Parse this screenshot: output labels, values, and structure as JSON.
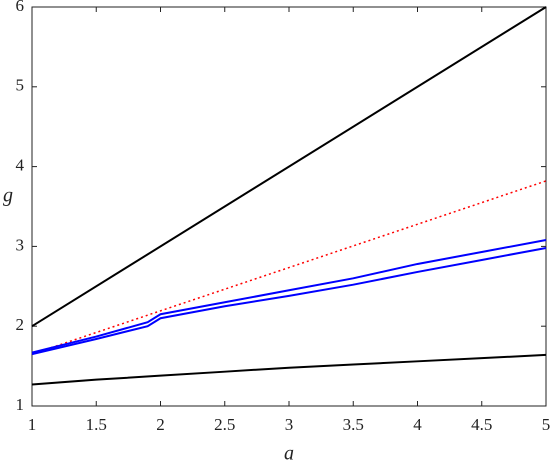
{
  "chart_data": {
    "type": "line",
    "xlabel": "a",
    "ylabel": "g",
    "xlim": [
      1,
      5
    ],
    "ylim": [
      1,
      6
    ],
    "xticks": [
      1,
      1.5,
      2,
      2.5,
      3,
      3.5,
      4,
      4.5,
      5
    ],
    "yticks": [
      1,
      2,
      3,
      4,
      5,
      6
    ],
    "series": [
      {
        "color": "#000000",
        "style": "solid",
        "x": [
          1,
          5
        ],
        "values": [
          2,
          6
        ]
      },
      {
        "color": "#000000",
        "style": "solid",
        "x": [
          1,
          1.5,
          2,
          2.5,
          3,
          3.5,
          4,
          4.5,
          5
        ],
        "values": [
          1.27,
          1.33,
          1.38,
          1.43,
          1.48,
          1.52,
          1.56,
          1.6,
          1.64
        ]
      },
      {
        "color": "#ff0000",
        "style": "dotted",
        "x": [
          1,
          5
        ],
        "values": [
          1.65,
          3.82
        ]
      },
      {
        "color": "#0000ff",
        "style": "solid",
        "x": [
          1,
          1.5,
          1.9,
          2,
          2.5,
          3,
          3.5,
          4,
          4.5,
          5
        ],
        "values": [
          1.67,
          1.87,
          2.05,
          2.15,
          2.3,
          2.45,
          2.6,
          2.78,
          2.93,
          3.08
        ]
      },
      {
        "color": "#0000ff",
        "style": "solid",
        "x": [
          1,
          1.5,
          1.9,
          2,
          2.5,
          3,
          3.5,
          4,
          4.5,
          5
        ],
        "values": [
          1.65,
          1.84,
          2.0,
          2.1,
          2.25,
          2.38,
          2.52,
          2.68,
          2.83,
          2.98
        ]
      }
    ]
  }
}
